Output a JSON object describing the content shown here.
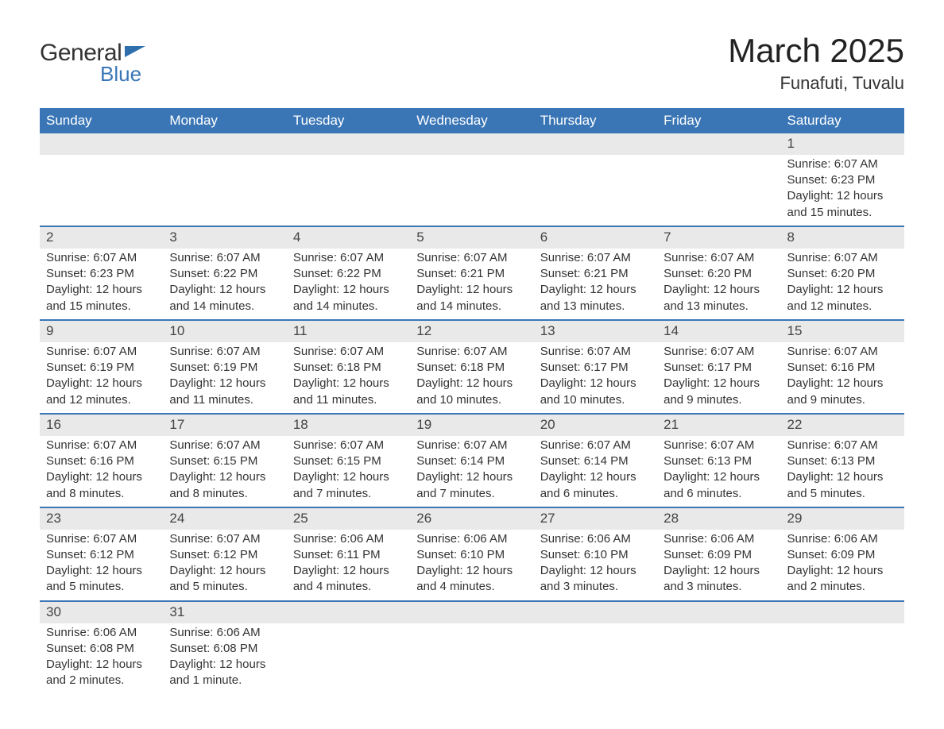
{
  "logo": {
    "word1": "General",
    "word2": "Blue",
    "flag_color": "#2f6fae"
  },
  "title": "March 2025",
  "location": "Funafuti, Tuvalu",
  "header_bg": "#3a76b6",
  "daynum_bg": "#e9e9e9",
  "row_border": "#3a76b6",
  "weekdays": [
    "Sunday",
    "Monday",
    "Tuesday",
    "Wednesday",
    "Thursday",
    "Friday",
    "Saturday"
  ],
  "labels": {
    "sunrise": "Sunrise:",
    "sunset": "Sunset:",
    "daylight": "Daylight:"
  },
  "weeks": [
    [
      null,
      null,
      null,
      null,
      null,
      null,
      {
        "n": "1",
        "sr": "6:07 AM",
        "ss": "6:23 PM",
        "dl": "12 hours and 15 minutes."
      }
    ],
    [
      {
        "n": "2",
        "sr": "6:07 AM",
        "ss": "6:23 PM",
        "dl": "12 hours and 15 minutes."
      },
      {
        "n": "3",
        "sr": "6:07 AM",
        "ss": "6:22 PM",
        "dl": "12 hours and 14 minutes."
      },
      {
        "n": "4",
        "sr": "6:07 AM",
        "ss": "6:22 PM",
        "dl": "12 hours and 14 minutes."
      },
      {
        "n": "5",
        "sr": "6:07 AM",
        "ss": "6:21 PM",
        "dl": "12 hours and 14 minutes."
      },
      {
        "n": "6",
        "sr": "6:07 AM",
        "ss": "6:21 PM",
        "dl": "12 hours and 13 minutes."
      },
      {
        "n": "7",
        "sr": "6:07 AM",
        "ss": "6:20 PM",
        "dl": "12 hours and 13 minutes."
      },
      {
        "n": "8",
        "sr": "6:07 AM",
        "ss": "6:20 PM",
        "dl": "12 hours and 12 minutes."
      }
    ],
    [
      {
        "n": "9",
        "sr": "6:07 AM",
        "ss": "6:19 PM",
        "dl": "12 hours and 12 minutes."
      },
      {
        "n": "10",
        "sr": "6:07 AM",
        "ss": "6:19 PM",
        "dl": "12 hours and 11 minutes."
      },
      {
        "n": "11",
        "sr": "6:07 AM",
        "ss": "6:18 PM",
        "dl": "12 hours and 11 minutes."
      },
      {
        "n": "12",
        "sr": "6:07 AM",
        "ss": "6:18 PM",
        "dl": "12 hours and 10 minutes."
      },
      {
        "n": "13",
        "sr": "6:07 AM",
        "ss": "6:17 PM",
        "dl": "12 hours and 10 minutes."
      },
      {
        "n": "14",
        "sr": "6:07 AM",
        "ss": "6:17 PM",
        "dl": "12 hours and 9 minutes."
      },
      {
        "n": "15",
        "sr": "6:07 AM",
        "ss": "6:16 PM",
        "dl": "12 hours and 9 minutes."
      }
    ],
    [
      {
        "n": "16",
        "sr": "6:07 AM",
        "ss": "6:16 PM",
        "dl": "12 hours and 8 minutes."
      },
      {
        "n": "17",
        "sr": "6:07 AM",
        "ss": "6:15 PM",
        "dl": "12 hours and 8 minutes."
      },
      {
        "n": "18",
        "sr": "6:07 AM",
        "ss": "6:15 PM",
        "dl": "12 hours and 7 minutes."
      },
      {
        "n": "19",
        "sr": "6:07 AM",
        "ss": "6:14 PM",
        "dl": "12 hours and 7 minutes."
      },
      {
        "n": "20",
        "sr": "6:07 AM",
        "ss": "6:14 PM",
        "dl": "12 hours and 6 minutes."
      },
      {
        "n": "21",
        "sr": "6:07 AM",
        "ss": "6:13 PM",
        "dl": "12 hours and 6 minutes."
      },
      {
        "n": "22",
        "sr": "6:07 AM",
        "ss": "6:13 PM",
        "dl": "12 hours and 5 minutes."
      }
    ],
    [
      {
        "n": "23",
        "sr": "6:07 AM",
        "ss": "6:12 PM",
        "dl": "12 hours and 5 minutes."
      },
      {
        "n": "24",
        "sr": "6:07 AM",
        "ss": "6:12 PM",
        "dl": "12 hours and 5 minutes."
      },
      {
        "n": "25",
        "sr": "6:06 AM",
        "ss": "6:11 PM",
        "dl": "12 hours and 4 minutes."
      },
      {
        "n": "26",
        "sr": "6:06 AM",
        "ss": "6:10 PM",
        "dl": "12 hours and 4 minutes."
      },
      {
        "n": "27",
        "sr": "6:06 AM",
        "ss": "6:10 PM",
        "dl": "12 hours and 3 minutes."
      },
      {
        "n": "28",
        "sr": "6:06 AM",
        "ss": "6:09 PM",
        "dl": "12 hours and 3 minutes."
      },
      {
        "n": "29",
        "sr": "6:06 AM",
        "ss": "6:09 PM",
        "dl": "12 hours and 2 minutes."
      }
    ],
    [
      {
        "n": "30",
        "sr": "6:06 AM",
        "ss": "6:08 PM",
        "dl": "12 hours and 2 minutes."
      },
      {
        "n": "31",
        "sr": "6:06 AM",
        "ss": "6:08 PM",
        "dl": "12 hours and 1 minute."
      },
      null,
      null,
      null,
      null,
      null
    ]
  ]
}
